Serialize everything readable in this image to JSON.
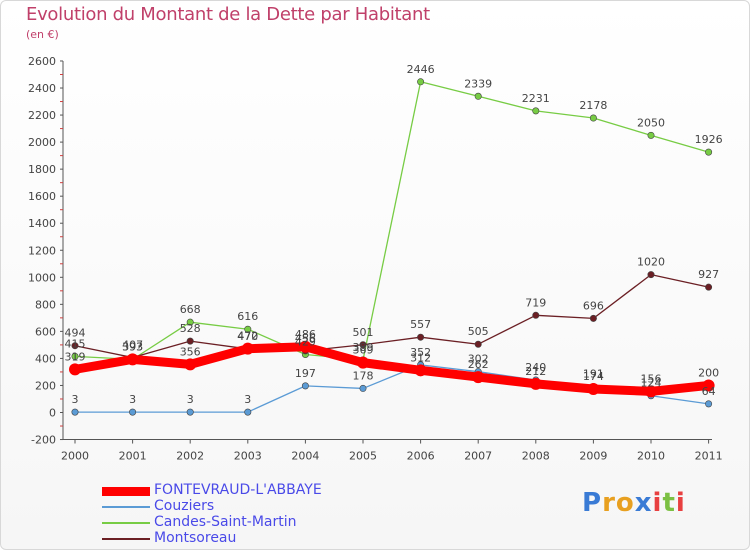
{
  "chart_data": {
    "type": "line",
    "title": "Evolution du Montant de la Dette par Habitant",
    "subtitle": "(en €)",
    "x": [
      "2000",
      "2001",
      "2002",
      "2003",
      "2004",
      "2005",
      "2006",
      "2007",
      "2008",
      "2009",
      "2010",
      "2011"
    ],
    "ylim": [
      -200,
      2600
    ],
    "yticks": [
      -200,
      0,
      200,
      400,
      600,
      800,
      1000,
      1200,
      1400,
      1600,
      1800,
      2000,
      2200,
      2400,
      2600
    ],
    "grid": false,
    "legend_position": "bottom-left",
    "series": [
      {
        "name": "Couziers",
        "color": "#5b9bd5",
        "values": [
          3,
          3,
          3,
          3,
          197,
          178,
          352,
          302,
          240,
          191,
          124,
          64
        ],
        "labels": [
          "3",
          "3",
          "3",
          "3",
          "197",
          "178",
          "352",
          "302",
          "240",
          "191",
          "124",
          "64"
        ]
      },
      {
        "name": "Candes-Saint-Martin",
        "color": "#77cc44",
        "values": [
          415,
          393,
          668,
          616,
          429,
          389,
          2446,
          2339,
          2231,
          2178,
          2050,
          1926
        ],
        "labels": [
          "415",
          "393",
          "668",
          "616",
          "429",
          "389",
          "2446",
          "2339",
          "2231",
          "2178",
          "2050",
          "1926"
        ]
      },
      {
        "name": "Montsoreau",
        "color": "#6b1f24",
        "values": [
          494,
          407,
          528,
          470,
          456,
          501,
          557,
          505,
          719,
          696,
          1020,
          927
        ],
        "labels": [
          "494",
          "407",
          "528",
          "470",
          "456",
          "501",
          "557",
          "505",
          "719",
          "696",
          "1020",
          "927"
        ]
      },
      {
        "name": "FONTEVRAUD-L'ABBAYE",
        "color": "#ff0000",
        "values": [
          319,
          393,
          356,
          472,
          486,
          369,
          312,
          262,
          212,
          174,
          156,
          200
        ],
        "labels": [
          "319",
          "393",
          "356",
          "472",
          "486",
          "369",
          "312",
          "262",
          "212",
          "174",
          "156",
          "200"
        ]
      }
    ],
    "legend": [
      {
        "name": "FONTEVRAUD-L'ABBAYE",
        "color": "#ff0000"
      },
      {
        "name": "Couziers",
        "color": "#5b9bd5"
      },
      {
        "name": "Candes-Saint-Martin",
        "color": "#77cc44"
      },
      {
        "name": "Montsoreau",
        "color": "#6b1f24"
      }
    ]
  },
  "logo": {
    "letters": [
      "P",
      "r",
      "o",
      "x",
      "i",
      "t",
      "i"
    ],
    "colors": [
      "#3a7bd5",
      "#e8a020",
      "#e8a020",
      "#3a7bd5",
      "#e84040",
      "#7cc043",
      "#e84040"
    ]
  }
}
